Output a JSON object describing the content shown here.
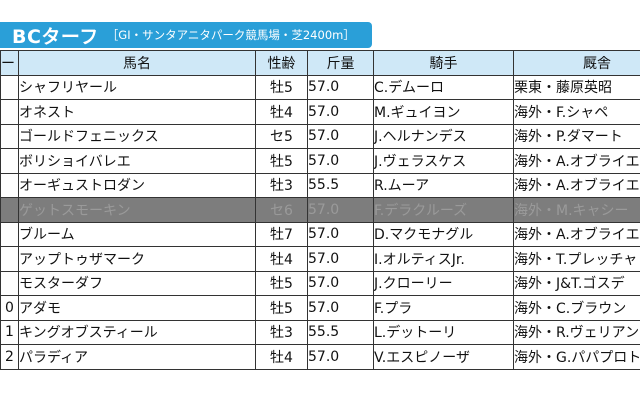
{
  "header": {
    "title": "BCターフ",
    "subtitle": "［GⅠ・サンタアニタパーク競馬場・芝2400m］"
  },
  "columns": {
    "gate": "ート",
    "name": "馬名",
    "sexage": "性齢",
    "weight": "斤量",
    "jockey": "騎手",
    "trainer": "厩舎"
  },
  "colors": {
    "title_bg": "#2a9fd8",
    "header_bg": "#cfe8f7",
    "scratched_bg": "#7d7d7d"
  },
  "rows": [
    {
      "num": "",
      "name": "シャフリヤール",
      "sexage": "牡5",
      "weight": "57.0",
      "jockey": "C.デムーロ",
      "trainer": "栗東・藤原英昭",
      "scratched": false
    },
    {
      "num": "",
      "name": "オネスト",
      "sexage": "牡4",
      "weight": "57.0",
      "jockey": "M.ギュイヨン",
      "trainer": "海外・F.シャペ",
      "scratched": false
    },
    {
      "num": "",
      "name": "ゴールドフェニックス",
      "sexage": "セ5",
      "weight": "57.0",
      "jockey": "J.ヘルナンデス",
      "trainer": "海外・P.ダマート",
      "scratched": false
    },
    {
      "num": "",
      "name": "ボリショイバレエ",
      "sexage": "牡5",
      "weight": "57.0",
      "jockey": "J.ヴェラスケス",
      "trainer": "海外・A.オブライエ",
      "scratched": false
    },
    {
      "num": "",
      "name": "オーギュストロダン",
      "sexage": "牡3",
      "weight": "55.5",
      "jockey": "R.ムーア",
      "trainer": "海外・A.オブライエ",
      "scratched": false
    },
    {
      "num": "",
      "name": "ゲットスモーキン",
      "sexage": "セ6",
      "weight": "57.0",
      "jockey": "F.デラクルーズ",
      "trainer": "海外・M.キャシー",
      "scratched": true
    },
    {
      "num": "",
      "name": "ブルーム",
      "sexage": "牡7",
      "weight": "57.0",
      "jockey": "D.マクモナグル",
      "trainer": "海外・A.オブライエ",
      "scratched": false
    },
    {
      "num": "",
      "name": "アップトゥザマーク",
      "sexage": "牡4",
      "weight": "57.0",
      "jockey": "I.オルティスJr.",
      "trainer": "海外・T.プレッチャ",
      "scratched": false
    },
    {
      "num": "",
      "name": "モスターダフ",
      "sexage": "牡5",
      "weight": "57.0",
      "jockey": "J.クローリー",
      "trainer": "海外・J&T.ゴスデ",
      "scratched": false
    },
    {
      "num": "0",
      "name": "アダモ",
      "sexage": "牡5",
      "weight": "57.0",
      "jockey": "F.プラ",
      "trainer": "海外・C.ブラウン",
      "scratched": false
    },
    {
      "num": "1",
      "name": "キングオブスティール",
      "sexage": "牡3",
      "weight": "55.5",
      "jockey": "L.デットーリ",
      "trainer": "海外・R.ヴェリアン",
      "scratched": false
    },
    {
      "num": "2",
      "name": "パラディア",
      "sexage": "牡4",
      "weight": "57.0",
      "jockey": "V.エスピノーザ",
      "trainer": "海外・G.パパプロト",
      "scratched": false
    }
  ]
}
